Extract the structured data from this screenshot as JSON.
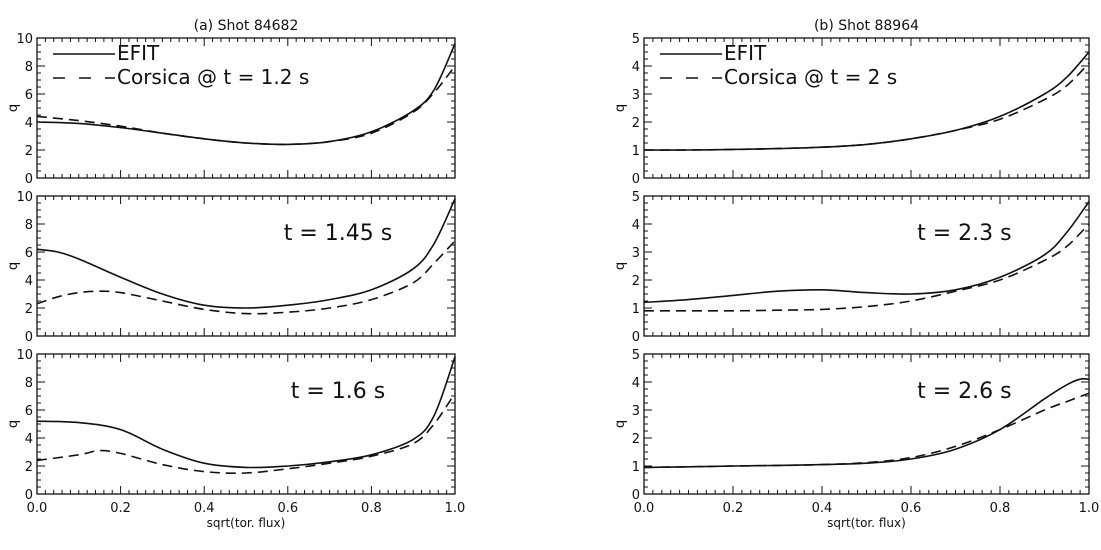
{
  "chart_data": [
    {
      "type": "line",
      "column_title": "(a) Shot 84682",
      "ylabel": "q",
      "xlabel": "",
      "xlim": [
        0,
        1
      ],
      "ylim": [
        0,
        10
      ],
      "yticks": [
        "0",
        "2",
        "4",
        "6",
        "8",
        "10"
      ],
      "xticks": [
        "0.0",
        "0.2",
        "0.4",
        "0.6",
        "0.8",
        "1.0"
      ],
      "annotation": "",
      "legend": [
        "EFIT",
        "Corsica @ t = 1.2 s"
      ],
      "series": [
        {
          "name": "EFIT",
          "style": "solid",
          "x": [
            0,
            0.1,
            0.2,
            0.3,
            0.4,
            0.5,
            0.6,
            0.7,
            0.8,
            0.9,
            0.95,
            1.0
          ],
          "y": [
            4.0,
            3.9,
            3.6,
            3.2,
            2.8,
            2.5,
            2.4,
            2.6,
            3.3,
            4.8,
            6.3,
            9.6
          ]
        },
        {
          "name": "Corsica @ t = 1.2 s",
          "style": "dashed",
          "x": [
            0,
            0.1,
            0.2,
            0.3,
            0.4,
            0.5,
            0.6,
            0.7,
            0.8,
            0.9,
            0.95,
            1.0
          ],
          "y": [
            4.4,
            4.1,
            3.7,
            3.2,
            2.8,
            2.5,
            2.4,
            2.6,
            3.2,
            4.7,
            6.1,
            8.0
          ]
        }
      ]
    },
    {
      "type": "line",
      "column_title": "",
      "ylabel": "q",
      "xlabel": "",
      "xlim": [
        0,
        1
      ],
      "ylim": [
        0,
        10
      ],
      "yticks": [
        "0",
        "2",
        "4",
        "6",
        "8",
        "10"
      ],
      "xticks": [
        "0.0",
        "0.2",
        "0.4",
        "0.6",
        "0.8",
        "1.0"
      ],
      "annotation": "t = 1.45 s",
      "legend": [],
      "series": [
        {
          "name": "EFIT",
          "style": "solid",
          "x": [
            0,
            0.05,
            0.1,
            0.2,
            0.3,
            0.4,
            0.5,
            0.6,
            0.7,
            0.8,
            0.9,
            0.95,
            1.0
          ],
          "y": [
            6.2,
            6.0,
            5.5,
            4.2,
            3.0,
            2.2,
            2.0,
            2.2,
            2.6,
            3.3,
            4.8,
            6.6,
            9.8
          ]
        },
        {
          "name": "Corsica",
          "style": "dashed",
          "x": [
            0,
            0.05,
            0.1,
            0.15,
            0.2,
            0.3,
            0.4,
            0.5,
            0.6,
            0.7,
            0.8,
            0.9,
            0.95,
            1.0
          ],
          "y": [
            2.3,
            2.8,
            3.1,
            3.2,
            3.1,
            2.5,
            1.9,
            1.6,
            1.7,
            2.0,
            2.6,
            3.8,
            5.2,
            6.8
          ]
        }
      ]
    },
    {
      "type": "line",
      "column_title": "",
      "ylabel": "q",
      "xlabel": "sqrt(tor. flux)",
      "xlim": [
        0,
        1
      ],
      "ylim": [
        0,
        10
      ],
      "yticks": [
        "0",
        "2",
        "4",
        "6",
        "8",
        "10"
      ],
      "xticks": [
        "0.0",
        "0.2",
        "0.4",
        "0.6",
        "0.8",
        "1.0"
      ],
      "annotation": "t = 1.6 s",
      "legend": [],
      "series": [
        {
          "name": "EFIT",
          "style": "solid",
          "x": [
            0,
            0.1,
            0.2,
            0.3,
            0.4,
            0.5,
            0.6,
            0.7,
            0.8,
            0.9,
            0.95,
            1.0
          ],
          "y": [
            5.2,
            5.1,
            4.6,
            3.2,
            2.2,
            1.9,
            2.0,
            2.3,
            2.8,
            3.9,
            5.6,
            9.8
          ]
        },
        {
          "name": "Corsica",
          "style": "dashed",
          "x": [
            0,
            0.1,
            0.15,
            0.2,
            0.3,
            0.4,
            0.5,
            0.6,
            0.7,
            0.8,
            0.9,
            0.95,
            1.0
          ],
          "y": [
            2.4,
            2.8,
            3.1,
            2.9,
            2.1,
            1.6,
            1.5,
            1.8,
            2.2,
            2.7,
            3.6,
            5.0,
            7.2
          ]
        }
      ]
    },
    {
      "type": "line",
      "column_title": "(b) Shot 88964",
      "ylabel": "q",
      "xlabel": "",
      "xlim": [
        0,
        1
      ],
      "ylim": [
        0,
        5
      ],
      "yticks": [
        "0",
        "1",
        "2",
        "3",
        "4",
        "5"
      ],
      "xticks": [
        "0.0",
        "0.2",
        "0.4",
        "0.6",
        "0.8",
        "1.0"
      ],
      "annotation": "",
      "legend": [
        "EFIT",
        "Corsica @ t = 2 s"
      ],
      "series": [
        {
          "name": "EFIT",
          "style": "solid",
          "x": [
            0,
            0.1,
            0.2,
            0.3,
            0.4,
            0.5,
            0.6,
            0.7,
            0.8,
            0.9,
            0.95,
            1.0
          ],
          "y": [
            1.0,
            1.0,
            1.02,
            1.05,
            1.1,
            1.2,
            1.4,
            1.7,
            2.2,
            3.0,
            3.6,
            4.5
          ]
        },
        {
          "name": "Corsica @ t = 2 s",
          "style": "dashed",
          "x": [
            0,
            0.1,
            0.2,
            0.3,
            0.4,
            0.5,
            0.6,
            0.7,
            0.8,
            0.9,
            0.95,
            1.0
          ],
          "y": [
            1.0,
            1.0,
            1.02,
            1.05,
            1.1,
            1.2,
            1.4,
            1.7,
            2.1,
            2.8,
            3.3,
            4.1
          ]
        }
      ]
    },
    {
      "type": "line",
      "column_title": "",
      "ylabel": "q",
      "xlabel": "",
      "xlim": [
        0,
        1
      ],
      "ylim": [
        0,
        5
      ],
      "yticks": [
        "0",
        "1",
        "2",
        "3",
        "4",
        "5"
      ],
      "xticks": [
        "0.0",
        "0.2",
        "0.4",
        "0.6",
        "0.8",
        "1.0"
      ],
      "annotation": "t = 2.3 s",
      "legend": [],
      "series": [
        {
          "name": "EFIT",
          "style": "solid",
          "x": [
            0,
            0.1,
            0.2,
            0.3,
            0.4,
            0.5,
            0.6,
            0.7,
            0.8,
            0.9,
            0.95,
            1.0
          ],
          "y": [
            1.2,
            1.3,
            1.45,
            1.6,
            1.65,
            1.55,
            1.5,
            1.65,
            2.1,
            2.9,
            3.7,
            4.8
          ]
        },
        {
          "name": "Corsica",
          "style": "dashed",
          "x": [
            0,
            0.1,
            0.2,
            0.3,
            0.4,
            0.5,
            0.6,
            0.7,
            0.8,
            0.9,
            0.95,
            1.0
          ],
          "y": [
            0.9,
            0.9,
            0.9,
            0.92,
            0.95,
            1.05,
            1.25,
            1.6,
            2.0,
            2.7,
            3.2,
            4.0
          ]
        }
      ]
    },
    {
      "type": "line",
      "column_title": "",
      "ylabel": "q",
      "xlabel": "sqrt(tor. flux)",
      "xlim": [
        0,
        1
      ],
      "ylim": [
        0,
        5
      ],
      "yticks": [
        "0",
        "1",
        "2",
        "3",
        "4",
        "5"
      ],
      "xticks": [
        "0.0",
        "0.2",
        "0.4",
        "0.6",
        "0.8",
        "1.0"
      ],
      "annotation": "t = 2.6 s",
      "legend": [],
      "series": [
        {
          "name": "EFIT",
          "style": "solid",
          "x": [
            0,
            0.1,
            0.2,
            0.3,
            0.4,
            0.5,
            0.6,
            0.7,
            0.8,
            0.9,
            0.95,
            0.98,
            1.0
          ],
          "y": [
            0.95,
            0.97,
            1.0,
            1.02,
            1.05,
            1.1,
            1.25,
            1.6,
            2.3,
            3.4,
            3.9,
            4.1,
            4.1
          ]
        },
        {
          "name": "Corsica",
          "style": "dashed",
          "x": [
            0,
            0.1,
            0.2,
            0.3,
            0.4,
            0.5,
            0.6,
            0.7,
            0.8,
            0.9,
            0.95,
            1.0
          ],
          "y": [
            0.95,
            0.97,
            1.0,
            1.02,
            1.05,
            1.12,
            1.3,
            1.7,
            2.3,
            3.0,
            3.3,
            3.6
          ]
        }
      ]
    }
  ]
}
